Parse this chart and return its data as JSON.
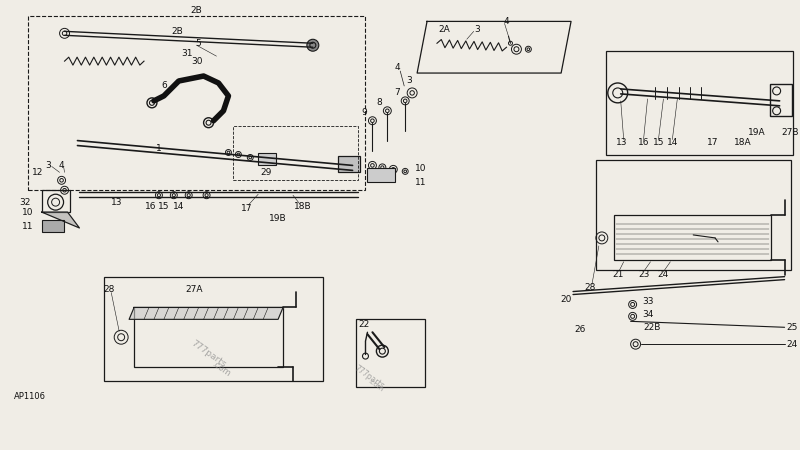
{
  "bg_color": "#e8e4dc",
  "line_color": "#1a1a1a",
  "text_color": "#111111",
  "watermark1": "777parts",
  "watermark2": ".com",
  "part_number": "AP1106",
  "fs": 6.5
}
